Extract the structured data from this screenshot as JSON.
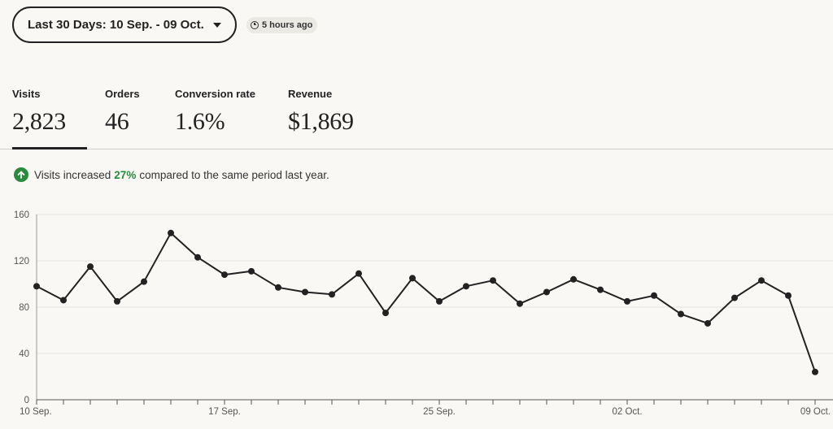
{
  "header": {
    "date_range_label": "Last 30 Days: 10 Sep. - 09 Oct.",
    "updated_label": "5 hours ago"
  },
  "stats": [
    {
      "label": "Visits",
      "value": "2,823",
      "selected": true
    },
    {
      "label": "Orders",
      "value": "46",
      "selected": false
    },
    {
      "label": "Conversion rate",
      "value": "1.6%",
      "selected": false
    },
    {
      "label": "Revenue",
      "value": "$1,869",
      "selected": false
    }
  ],
  "notice": {
    "prefix": "Visits increased",
    "percent": "27%",
    "suffix": "compared to the same period last year.",
    "icon": "arrow-up-icon",
    "color": "#2a8a3e"
  },
  "chart_data": {
    "type": "line",
    "title": "",
    "xlabel": "",
    "ylabel": "",
    "ylim": [
      0,
      160
    ],
    "yticks": [
      0,
      40,
      80,
      120,
      160
    ],
    "xtick_labels": [
      {
        "index": 0,
        "label": "10 Sep."
      },
      {
        "index": 7,
        "label": "17 Sep."
      },
      {
        "index": 15,
        "label": "25 Sep."
      },
      {
        "index": 22,
        "label": "02 Oct."
      },
      {
        "index": 29,
        "label": "09 Oct."
      }
    ],
    "grid": true,
    "line_color": "#222222",
    "series": [
      {
        "values": [
          98,
          86,
          115,
          85,
          102,
          144,
          123,
          108,
          111,
          97,
          93,
          91,
          109,
          75,
          105,
          85,
          98,
          103,
          83,
          93,
          104,
          95,
          85,
          90,
          74,
          66,
          88,
          103,
          90,
          24
        ]
      }
    ]
  }
}
